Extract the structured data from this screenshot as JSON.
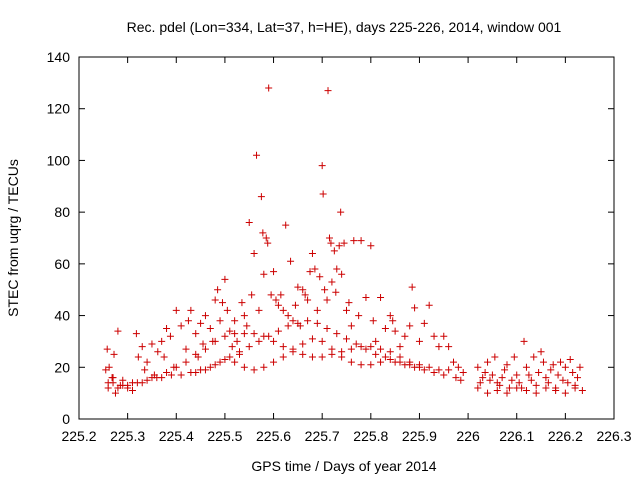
{
  "chart_data": {
    "type": "scatter",
    "title": "Rec. pdel (Lon=334, Lat=37, h=HE), days 225-226, 2014, window 001",
    "xlabel": "GPS time / Days of year 2014",
    "ylabel": "STEC from uqrg / TECUs",
    "xlim": [
      225.2,
      226.3
    ],
    "ylim": [
      0,
      140
    ],
    "xticks": [
      "225.2",
      "225.3",
      "225.4",
      "225.5",
      "225.6",
      "225.7",
      "225.8",
      "225.9",
      "226",
      "226.1",
      "226.2",
      "226.3"
    ],
    "yticks": [
      "0",
      "20",
      "40",
      "60",
      "80",
      "100",
      "120",
      "140"
    ],
    "grid": false,
    "legend": "none",
    "marker": "+",
    "color": "#cc0000",
    "points": [
      [
        225.258,
        27
      ],
      [
        225.262,
        20
      ],
      [
        225.268,
        16
      ],
      [
        225.272,
        25
      ],
      [
        225.28,
        34
      ],
      [
        225.26,
        12
      ],
      [
        225.27,
        14
      ],
      [
        225.275,
        10
      ],
      [
        225.285,
        13
      ],
      [
        225.29,
        15
      ],
      [
        225.3,
        12
      ],
      [
        225.31,
        11
      ],
      [
        225.318,
        33
      ],
      [
        225.322,
        24
      ],
      [
        225.33,
        28
      ],
      [
        225.335,
        19
      ],
      [
        225.34,
        22
      ],
      [
        225.35,
        29
      ],
      [
        225.355,
        17
      ],
      [
        225.362,
        26
      ],
      [
        225.37,
        30
      ],
      [
        225.375,
        24
      ],
      [
        225.38,
        35
      ],
      [
        225.388,
        32
      ],
      [
        225.395,
        20
      ],
      [
        225.4,
        42
      ],
      [
        225.41,
        36
      ],
      [
        225.42,
        27
      ],
      [
        225.425,
        38
      ],
      [
        225.43,
        42
      ],
      [
        225.44,
        33
      ],
      [
        225.445,
        24
      ],
      [
        225.45,
        37
      ],
      [
        225.455,
        29
      ],
      [
        225.46,
        40
      ],
      [
        225.47,
        35
      ],
      [
        225.475,
        30
      ],
      [
        225.48,
        46
      ],
      [
        225.485,
        50
      ],
      [
        225.49,
        38
      ],
      [
        225.495,
        45
      ],
      [
        225.5,
        54
      ],
      [
        225.505,
        42
      ],
      [
        225.51,
        34
      ],
      [
        225.515,
        28
      ],
      [
        225.52,
        38
      ],
      [
        225.525,
        30
      ],
      [
        225.53,
        25
      ],
      [
        225.535,
        45
      ],
      [
        225.54,
        40
      ],
      [
        225.545,
        36
      ],
      [
        225.55,
        76
      ],
      [
        225.555,
        48
      ],
      [
        225.56,
        64
      ],
      [
        225.565,
        102
      ],
      [
        225.57,
        42
      ],
      [
        225.575,
        86
      ],
      [
        225.578,
        72
      ],
      [
        225.58,
        56
      ],
      [
        225.585,
        70
      ],
      [
        225.588,
        68
      ],
      [
        225.59,
        128
      ],
      [
        225.595,
        48
      ],
      [
        225.6,
        57
      ],
      [
        225.605,
        46
      ],
      [
        225.61,
        44
      ],
      [
        225.615,
        48
      ],
      [
        225.62,
        42
      ],
      [
        225.625,
        75
      ],
      [
        225.63,
        40
      ],
      [
        225.635,
        61
      ],
      [
        225.64,
        38
      ],
      [
        225.645,
        44
      ],
      [
        225.65,
        51
      ],
      [
        225.655,
        36
      ],
      [
        225.66,
        50
      ],
      [
        225.665,
        48
      ],
      [
        225.67,
        46
      ],
      [
        225.675,
        57
      ],
      [
        225.68,
        64
      ],
      [
        225.685,
        58
      ],
      [
        225.69,
        42
      ],
      [
        225.695,
        55
      ],
      [
        225.7,
        98
      ],
      [
        225.702,
        87
      ],
      [
        225.705,
        50
      ],
      [
        225.71,
        46
      ],
      [
        225.712,
        127
      ],
      [
        225.715,
        70
      ],
      [
        225.718,
        68
      ],
      [
        225.72,
        53
      ],
      [
        225.725,
        65
      ],
      [
        225.728,
        49
      ],
      [
        225.73,
        58
      ],
      [
        225.735,
        67
      ],
      [
        225.738,
        80
      ],
      [
        225.74,
        56
      ],
      [
        225.745,
        68
      ],
      [
        225.75,
        42
      ],
      [
        225.755,
        45
      ],
      [
        225.76,
        36
      ],
      [
        225.765,
        69
      ],
      [
        225.775,
        40
      ],
      [
        225.78,
        69
      ],
      [
        225.79,
        47
      ],
      [
        225.8,
        67
      ],
      [
        225.805,
        38
      ],
      [
        225.81,
        30
      ],
      [
        225.82,
        47
      ],
      [
        225.83,
        35
      ],
      [
        225.84,
        40
      ],
      [
        225.845,
        38
      ],
      [
        225.85,
        34
      ],
      [
        225.86,
        28
      ],
      [
        225.87,
        32
      ],
      [
        225.88,
        36
      ],
      [
        225.885,
        51
      ],
      [
        225.89,
        43
      ],
      [
        225.9,
        30
      ],
      [
        225.91,
        37
      ],
      [
        225.92,
        44
      ],
      [
        225.93,
        32
      ],
      [
        225.94,
        28
      ],
      [
        225.95,
        32
      ],
      [
        225.96,
        28
      ],
      [
        225.255,
        19
      ],
      [
        225.27,
        16
      ],
      [
        225.29,
        13
      ],
      [
        225.31,
        14
      ],
      [
        225.33,
        14
      ],
      [
        225.35,
        16
      ],
      [
        225.37,
        16
      ],
      [
        225.39,
        17
      ],
      [
        225.41,
        17
      ],
      [
        225.43,
        18
      ],
      [
        225.45,
        19
      ],
      [
        225.47,
        20
      ],
      [
        225.49,
        22
      ],
      [
        225.51,
        24
      ],
      [
        225.53,
        26
      ],
      [
        225.55,
        28
      ],
      [
        225.57,
        30
      ],
      [
        225.59,
        32
      ],
      [
        225.61,
        34
      ],
      [
        225.63,
        36
      ],
      [
        225.65,
        37
      ],
      [
        225.67,
        38
      ],
      [
        225.69,
        37
      ],
      [
        225.71,
        35
      ],
      [
        225.73,
        33
      ],
      [
        225.75,
        31
      ],
      [
        225.77,
        29
      ],
      [
        225.79,
        27
      ],
      [
        225.81,
        25
      ],
      [
        225.83,
        24
      ],
      [
        225.85,
        22
      ],
      [
        225.87,
        21
      ],
      [
        225.89,
        20
      ],
      [
        225.91,
        19
      ],
      [
        225.93,
        18
      ],
      [
        225.95,
        17
      ],
      [
        225.26,
        14
      ],
      [
        225.28,
        12
      ],
      [
        225.3,
        13
      ],
      [
        225.32,
        14
      ],
      [
        225.34,
        15
      ],
      [
        225.36,
        16
      ],
      [
        225.38,
        18
      ],
      [
        225.4,
        20
      ],
      [
        225.42,
        22
      ],
      [
        225.44,
        25
      ],
      [
        225.46,
        27
      ],
      [
        225.48,
        30
      ],
      [
        225.5,
        32
      ],
      [
        225.52,
        33
      ],
      [
        225.54,
        33
      ],
      [
        225.56,
        33
      ],
      [
        225.58,
        32
      ],
      [
        225.6,
        30
      ],
      [
        225.62,
        28
      ],
      [
        225.64,
        26
      ],
      [
        225.66,
        25
      ],
      [
        225.68,
        24
      ],
      [
        225.7,
        24
      ],
      [
        225.72,
        25
      ],
      [
        225.74,
        26
      ],
      [
        225.76,
        27
      ],
      [
        225.78,
        28
      ],
      [
        225.8,
        28
      ],
      [
        225.82,
        27
      ],
      [
        225.84,
        26
      ],
      [
        225.86,
        24
      ],
      [
        225.88,
        22
      ],
      [
        225.9,
        21
      ],
      [
        225.92,
        20
      ],
      [
        225.94,
        19
      ],
      [
        225.96,
        19
      ],
      [
        225.44,
        18
      ],
      [
        225.46,
        19
      ],
      [
        225.48,
        21
      ],
      [
        225.5,
        23
      ],
      [
        225.52,
        22
      ],
      [
        225.54,
        20
      ],
      [
        225.56,
        19
      ],
      [
        225.58,
        20
      ],
      [
        225.6,
        22
      ],
      [
        225.62,
        24
      ],
      [
        225.64,
        27
      ],
      [
        225.66,
        29
      ],
      [
        225.68,
        31
      ],
      [
        225.7,
        30
      ],
      [
        225.72,
        27
      ],
      [
        225.74,
        24
      ],
      [
        225.76,
        22
      ],
      [
        225.78,
        21
      ],
      [
        225.8,
        21
      ],
      [
        225.82,
        22
      ],
      [
        225.84,
        23
      ],
      [
        225.86,
        22
      ],
      [
        225.88,
        21
      ],
      [
        225.9,
        20
      ],
      [
        225.97,
        22
      ],
      [
        225.98,
        20
      ],
      [
        225.99,
        18
      ],
      [
        225.975,
        16
      ],
      [
        225.985,
        15
      ],
      [
        226.02,
        20
      ],
      [
        226.025,
        14
      ],
      [
        226.03,
        16
      ],
      [
        226.035,
        18
      ],
      [
        226.04,
        22
      ],
      [
        226.045,
        15
      ],
      [
        226.05,
        17
      ],
      [
        226.055,
        24
      ],
      [
        226.06,
        14
      ],
      [
        226.065,
        13
      ],
      [
        226.07,
        16
      ],
      [
        226.075,
        19
      ],
      [
        226.08,
        21
      ],
      [
        226.085,
        12
      ],
      [
        226.09,
        15
      ],
      [
        226.095,
        24
      ],
      [
        226.1,
        17
      ],
      [
        226.105,
        14
      ],
      [
        226.11,
        12
      ],
      [
        226.115,
        30
      ],
      [
        226.12,
        20
      ],
      [
        226.125,
        17
      ],
      [
        226.13,
        15
      ],
      [
        226.135,
        24
      ],
      [
        226.14,
        13
      ],
      [
        226.145,
        18
      ],
      [
        226.15,
        26
      ],
      [
        226.155,
        22
      ],
      [
        226.16,
        16
      ],
      [
        226.165,
        14
      ],
      [
        226.17,
        19
      ],
      [
        226.175,
        21
      ],
      [
        226.18,
        12
      ],
      [
        226.185,
        17
      ],
      [
        226.19,
        22
      ],
      [
        226.195,
        15
      ],
      [
        226.2,
        20
      ],
      [
        226.205,
        14
      ],
      [
        226.21,
        23
      ],
      [
        226.215,
        18
      ],
      [
        226.22,
        13
      ],
      [
        226.225,
        16
      ],
      [
        226.23,
        20
      ],
      [
        226.235,
        11
      ],
      [
        226.02,
        12
      ],
      [
        226.04,
        10
      ],
      [
        226.06,
        11
      ],
      [
        226.08,
        10
      ],
      [
        226.1,
        12
      ],
      [
        226.12,
        11
      ],
      [
        226.14,
        10
      ],
      [
        226.16,
        12
      ],
      [
        226.18,
        11
      ],
      [
        226.2,
        10
      ],
      [
        226.22,
        12
      ]
    ]
  }
}
